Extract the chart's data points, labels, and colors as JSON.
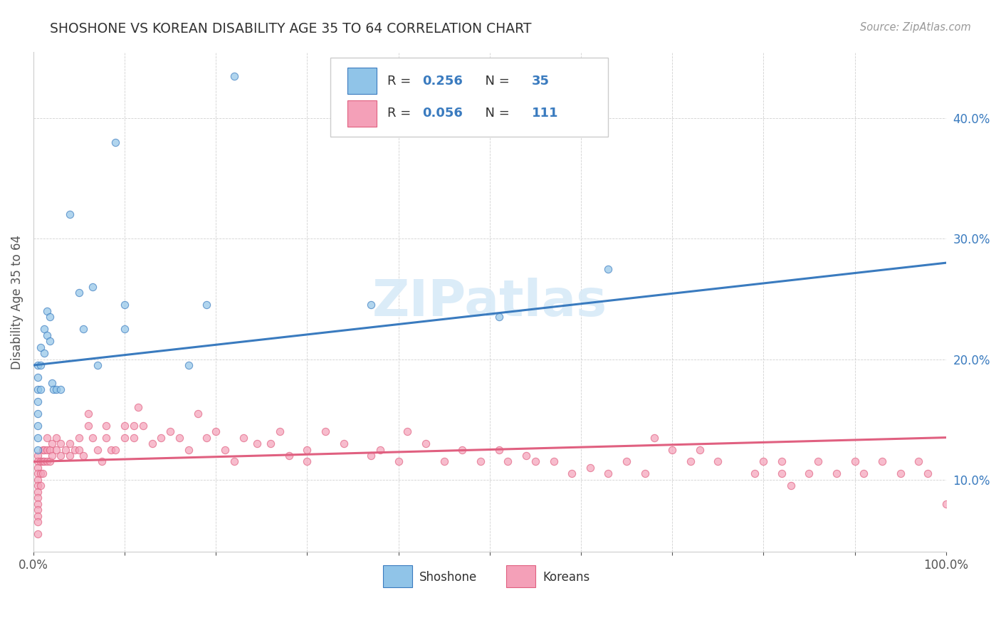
{
  "title": "SHOSHONE VS KOREAN DISABILITY AGE 35 TO 64 CORRELATION CHART",
  "source_text": "Source: ZipAtlas.com",
  "ylabel": "Disability Age 35 to 64",
  "xlim": [
    0,
    1.0
  ],
  "ylim": [
    0.04,
    0.455
  ],
  "xtick_positions": [
    0.0,
    0.1,
    0.2,
    0.3,
    0.4,
    0.5,
    0.6,
    0.7,
    0.8,
    0.9,
    1.0
  ],
  "xticklabels": [
    "0.0%",
    "",
    "",
    "",
    "",
    "",
    "",
    "",
    "",
    "",
    "100.0%"
  ],
  "ytick_positions": [
    0.1,
    0.2,
    0.3,
    0.4
  ],
  "yticklabels": [
    "10.0%",
    "20.0%",
    "30.0%",
    "40.0%"
  ],
  "shoshone_R": 0.256,
  "shoshone_N": 35,
  "korean_R": 0.056,
  "korean_N": 111,
  "shoshone_color": "#90c4e8",
  "korean_color": "#f4a0b8",
  "shoshone_line_color": "#3a7bbf",
  "korean_line_color": "#e06080",
  "watermark_color": "#d8eaf8",
  "shoshone_x": [
    0.005,
    0.005,
    0.005,
    0.005,
    0.005,
    0.005,
    0.005,
    0.005,
    0.008,
    0.008,
    0.008,
    0.012,
    0.012,
    0.015,
    0.015,
    0.018,
    0.018,
    0.02,
    0.022,
    0.025,
    0.03,
    0.04,
    0.05,
    0.055,
    0.065,
    0.07,
    0.09,
    0.1,
    0.1,
    0.17,
    0.19,
    0.22,
    0.37,
    0.51,
    0.63
  ],
  "shoshone_y": [
    0.195,
    0.185,
    0.175,
    0.165,
    0.155,
    0.145,
    0.135,
    0.125,
    0.21,
    0.195,
    0.175,
    0.225,
    0.205,
    0.24,
    0.22,
    0.235,
    0.215,
    0.18,
    0.175,
    0.175,
    0.175,
    0.32,
    0.255,
    0.225,
    0.26,
    0.195,
    0.38,
    0.245,
    0.225,
    0.195,
    0.245,
    0.435,
    0.245,
    0.235,
    0.275
  ],
  "korean_x": [
    0.005,
    0.005,
    0.005,
    0.005,
    0.005,
    0.005,
    0.005,
    0.005,
    0.005,
    0.005,
    0.005,
    0.005,
    0.005,
    0.008,
    0.008,
    0.008,
    0.01,
    0.01,
    0.01,
    0.012,
    0.012,
    0.015,
    0.015,
    0.015,
    0.018,
    0.018,
    0.02,
    0.02,
    0.025,
    0.025,
    0.03,
    0.03,
    0.035,
    0.04,
    0.04,
    0.045,
    0.05,
    0.05,
    0.055,
    0.06,
    0.06,
    0.065,
    0.07,
    0.075,
    0.08,
    0.08,
    0.085,
    0.09,
    0.1,
    0.1,
    0.11,
    0.11,
    0.115,
    0.12,
    0.13,
    0.14,
    0.15,
    0.16,
    0.17,
    0.18,
    0.19,
    0.2,
    0.21,
    0.22,
    0.23,
    0.245,
    0.26,
    0.27,
    0.28,
    0.3,
    0.3,
    0.32,
    0.34,
    0.37,
    0.38,
    0.4,
    0.41,
    0.43,
    0.45,
    0.47,
    0.49,
    0.51,
    0.52,
    0.54,
    0.55,
    0.57,
    0.59,
    0.61,
    0.63,
    0.65,
    0.67,
    0.68,
    0.7,
    0.72,
    0.73,
    0.75,
    0.79,
    0.82,
    0.85,
    0.86,
    0.88,
    0.9,
    0.91,
    0.93,
    0.95,
    0.97,
    0.98,
    1.0,
    0.8,
    0.82,
    0.83
  ],
  "korean_y": [
    0.12,
    0.115,
    0.11,
    0.105,
    0.1,
    0.095,
    0.09,
    0.085,
    0.08,
    0.075,
    0.07,
    0.065,
    0.055,
    0.115,
    0.105,
    0.095,
    0.125,
    0.115,
    0.105,
    0.125,
    0.115,
    0.135,
    0.125,
    0.115,
    0.125,
    0.115,
    0.13,
    0.12,
    0.135,
    0.125,
    0.13,
    0.12,
    0.125,
    0.13,
    0.12,
    0.125,
    0.135,
    0.125,
    0.12,
    0.155,
    0.145,
    0.135,
    0.125,
    0.115,
    0.145,
    0.135,
    0.125,
    0.125,
    0.145,
    0.135,
    0.145,
    0.135,
    0.16,
    0.145,
    0.13,
    0.135,
    0.14,
    0.135,
    0.125,
    0.155,
    0.135,
    0.14,
    0.125,
    0.115,
    0.135,
    0.13,
    0.13,
    0.14,
    0.12,
    0.125,
    0.115,
    0.14,
    0.13,
    0.12,
    0.125,
    0.115,
    0.14,
    0.13,
    0.115,
    0.125,
    0.115,
    0.125,
    0.115,
    0.12,
    0.115,
    0.115,
    0.105,
    0.11,
    0.105,
    0.115,
    0.105,
    0.135,
    0.125,
    0.115,
    0.125,
    0.115,
    0.105,
    0.115,
    0.105,
    0.115,
    0.105,
    0.115,
    0.105,
    0.115,
    0.105,
    0.115,
    0.105,
    0.08,
    0.115,
    0.105,
    0.095
  ]
}
